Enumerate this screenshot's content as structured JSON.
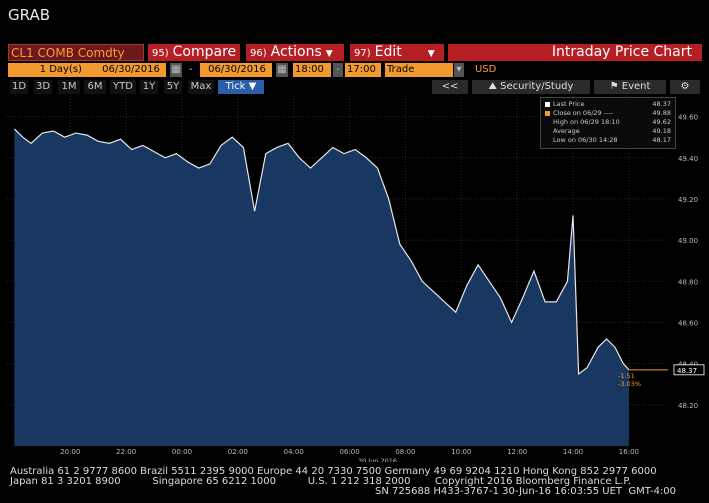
{
  "app_title": "GRAB",
  "toolbar": {
    "ticker": "CL1 COMB Comdty",
    "compare": {
      "num": "95)",
      "label": "Compare"
    },
    "actions": {
      "num": "96)",
      "label": "Actions"
    },
    "edit": {
      "num": "97)",
      "label": "Edit"
    },
    "chart_title": "Intraday Price Chart"
  },
  "params": {
    "days_value": "1",
    "days_unit": "Day(s)",
    "start_date": "06/30/2016",
    "end_date": "06/30/2016",
    "start_time": "18:00",
    "end_time": "17:00",
    "event": "Trade",
    "currency": "USD"
  },
  "timeframes": [
    "1D",
    "3D",
    "1M",
    "6M",
    "YTD",
    "1Y",
    "5Y",
    "Max"
  ],
  "tick_label": "Tick",
  "tools": {
    "back": "<<",
    "security_study": "Security/Study",
    "event": "Event"
  },
  "legend": [
    {
      "label": "Last Price",
      "value": "48.37",
      "color": "#ffffff"
    },
    {
      "label": "Close on 06/29 ----",
      "value": "49.88",
      "color": "#f29a2e"
    },
    {
      "label": "High on 06/29 18:10",
      "value": "49.62",
      "color": ""
    },
    {
      "label": "Average",
      "value": "49.18",
      "color": ""
    },
    {
      "label": "Low on 06/30 14:28",
      "value": "48.17",
      "color": ""
    }
  ],
  "chart_data": {
    "type": "line",
    "date_label": "30 Jun 2016",
    "x_ticks": [
      "20:00",
      "22:00",
      "00:00",
      "02:00",
      "04:00",
      "06:00",
      "08:00",
      "10:00",
      "12:00",
      "14:00",
      "16:00"
    ],
    "x_tick_hours": [
      20,
      22,
      24,
      26,
      28,
      30,
      32,
      34,
      36,
      38,
      40
    ],
    "xlim_hours": [
      17.7,
      41.4
    ],
    "ylim": [
      48.0,
      49.7
    ],
    "y_ticks": [
      "49.60",
      "49.40",
      "49.20",
      "49.00",
      "48.80",
      "48.60",
      "48.40",
      "48.20"
    ],
    "y_tick_values": [
      49.6,
      49.4,
      49.2,
      49.0,
      48.8,
      48.6,
      48.4,
      48.2
    ],
    "last_price_label": "48.37",
    "change": "-1.51",
    "change_pct": "-3.03%",
    "x_hours": [
      18.0,
      18.3,
      18.6,
      19.0,
      19.4,
      19.8,
      20.2,
      20.6,
      21.0,
      21.4,
      21.8,
      22.2,
      22.6,
      23.0,
      23.4,
      23.8,
      24.2,
      24.6,
      25.0,
      25.4,
      25.8,
      26.2,
      26.6,
      27.0,
      27.4,
      27.8,
      28.2,
      28.6,
      29.0,
      29.4,
      29.8,
      30.2,
      30.6,
      31.0,
      31.4,
      31.8,
      32.2,
      32.6,
      33.0,
      33.4,
      33.8,
      34.2,
      34.6,
      35.0,
      35.4,
      35.8,
      36.2,
      36.6,
      37.0,
      37.4,
      37.8,
      38.0,
      38.2,
      38.5,
      38.9,
      39.2,
      39.5,
      39.8,
      40.0
    ],
    "values": [
      49.54,
      49.5,
      49.47,
      49.52,
      49.53,
      49.5,
      49.52,
      49.51,
      49.48,
      49.47,
      49.49,
      49.44,
      49.46,
      49.43,
      49.4,
      49.42,
      49.38,
      49.35,
      49.37,
      49.46,
      49.5,
      49.45,
      49.14,
      49.42,
      49.45,
      49.47,
      49.4,
      49.35,
      49.4,
      49.45,
      49.42,
      49.44,
      49.4,
      49.35,
      49.2,
      48.98,
      48.9,
      48.8,
      48.75,
      48.7,
      48.65,
      48.78,
      48.88,
      48.8,
      48.72,
      48.6,
      48.72,
      48.85,
      48.7,
      48.7,
      48.8,
      49.12,
      48.35,
      48.38,
      48.48,
      48.52,
      48.48,
      48.4,
      48.37
    ],
    "prior_close": 49.88,
    "grid": true
  },
  "footer": {
    "line1": "Australia 61 2 9777 8600 Brazil 5511 2395 9000 Europe 44 20 7330 7500 Germany 49 69 9204 1210 Hong Kong 852 2977 6000",
    "line2": "Japan 81 3 3201 8900          Singapore 65 6212 1000          U.S. 1 212 318 2000",
    "line2r": "Copyright 2016 Bloomberg Finance L.P.",
    "line3": "SN 725688 H433-3767-1 30-Jun-16 16:03:55 UET  GMT-4:00"
  }
}
